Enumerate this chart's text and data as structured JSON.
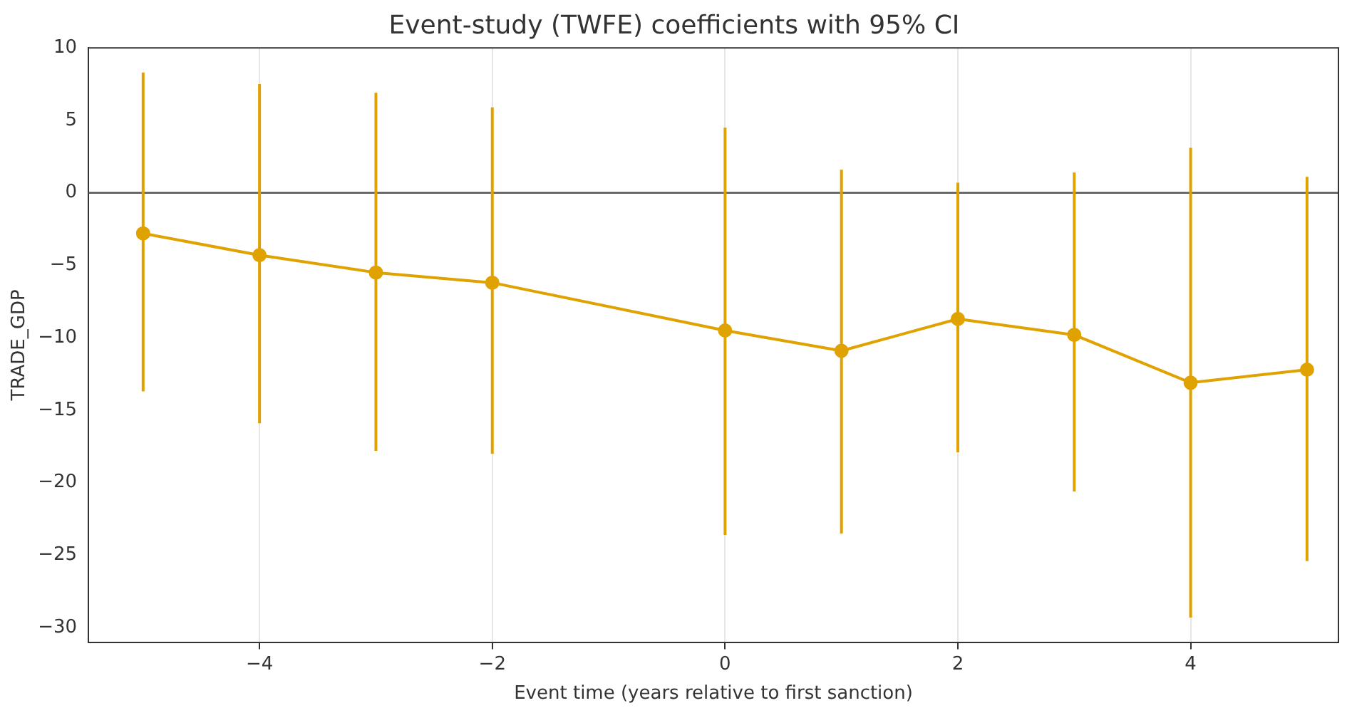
{
  "chart_data": {
    "type": "line",
    "title": "Event-study (TWFE) coefficients with 95% CI",
    "xlabel": "Event time (years relative to first sanction)",
    "ylabel": "TRADE_GDP",
    "x": [
      -5,
      -4,
      -3,
      -2,
      0,
      1,
      2,
      3,
      4,
      5
    ],
    "series": [
      {
        "color": "#e0a200",
        "values": [
          -2.8,
          -4.3,
          -5.5,
          -6.2,
          -9.5,
          -10.9,
          -8.7,
          -9.8,
          -13.1,
          -12.2
        ],
        "errors": [
          [
            -13.7,
            8.3
          ],
          [
            -15.9,
            7.5
          ],
          [
            -17.8,
            6.9
          ],
          [
            -18.0,
            5.9
          ],
          [
            -23.6,
            4.5
          ],
          [
            -23.5,
            1.6
          ],
          [
            -17.9,
            0.7
          ],
          [
            -20.6,
            1.4
          ],
          [
            -29.3,
            3.1
          ],
          [
            -25.4,
            1.1
          ]
        ]
      }
    ],
    "xlim": [
      -5.47,
      5.27
    ],
    "xticks": [
      {
        "value": -4,
        "label": "−4"
      },
      {
        "value": -2,
        "label": "−2"
      },
      0,
      2,
      4
    ],
    "ylim": [
      -31,
      10
    ],
    "yticks": [
      {
        "value": -30,
        "label": "−30"
      },
      {
        "value": -25,
        "label": "−25"
      },
      {
        "value": -20,
        "label": "−20"
      },
      {
        "value": -15,
        "label": "−15"
      },
      {
        "value": -10,
        "label": "−10"
      },
      {
        "value": -5,
        "label": "−5"
      },
      0,
      5,
      10
    ],
    "ref_lines": [
      {
        "axis": "y",
        "value": 0,
        "color": "#555555"
      }
    ],
    "grid": "x",
    "marker": "circle",
    "line_style": "solid"
  }
}
